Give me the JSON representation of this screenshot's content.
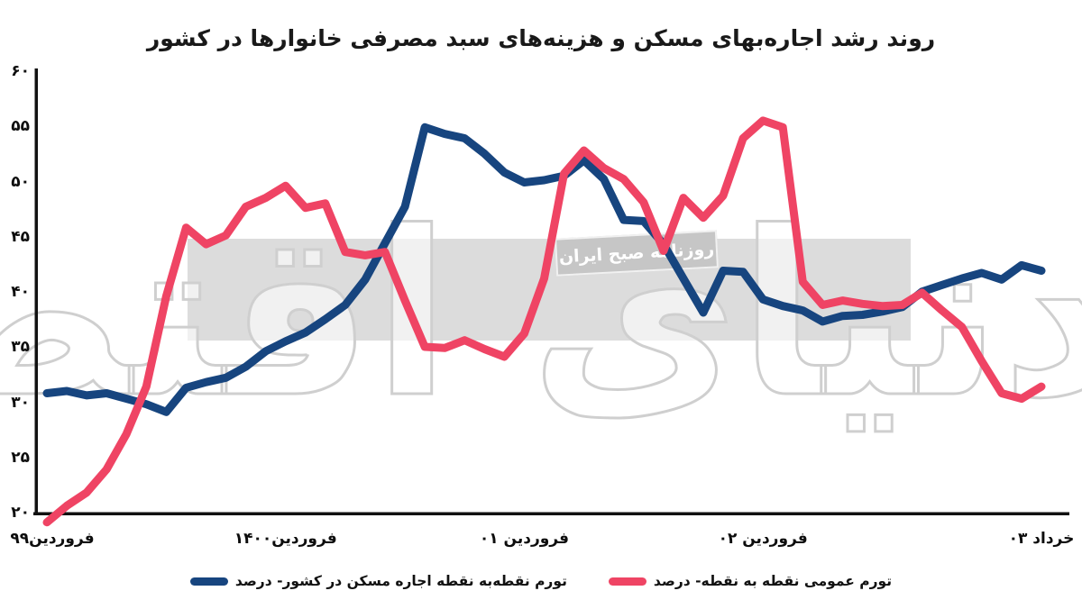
{
  "title": "روند رشد اجاره‌بهای مسکن و هزینه‌های سبد مصرفی خانوارها در کشور",
  "watermark": {
    "newspaper_name": "دنیای اقتصاد",
    "badge_text": "روزنامه صبح ایران",
    "band_color": "#dcdcdc",
    "badge_color": "#c6c6c6"
  },
  "colors": {
    "rent_line": "#17457f",
    "cpi_line": "#ef4464",
    "axis": "#111111"
  },
  "y_axis": {
    "ticks": [
      {
        "label": "۶۰",
        "value": 60
      },
      {
        "label": "۵۵",
        "value": 55
      },
      {
        "label": "۵۰",
        "value": 50
      },
      {
        "label": "۴۵",
        "value": 45
      },
      {
        "label": "۴۰",
        "value": 40
      },
      {
        "label": "۳۵",
        "value": 35
      },
      {
        "label": "۳۰",
        "value": 30
      },
      {
        "label": "۲۵",
        "value": 25
      },
      {
        "label": "۲۰",
        "value": 20
      }
    ]
  },
  "x_axis": {
    "labels": [
      {
        "label": "فروردین۹۹",
        "month": 0
      },
      {
        "label": "فروردین۱۴۰۰",
        "month": 12
      },
      {
        "label": "فروردین ۰۱",
        "month": 24
      },
      {
        "label": "فروردین ۰۲",
        "month": 36
      },
      {
        "label": "خرداد ۰۳",
        "month": 50
      }
    ]
  },
  "legend": {
    "items": [
      {
        "series": "rent",
        "label": "تورم نقطه‌به نقطه اجاره مسکن در کشور- درصد",
        "color": "#17457f"
      },
      {
        "series": "cpi",
        "label": "تورم عمومی نقطه به نقطه- درصد",
        "color": "#ef4464"
      }
    ]
  },
  "chart_data": {
    "type": "line",
    "title": "روند رشد اجاره‌بهای مسکن و هزینه‌های سبد مصرفی خانوارها در کشور",
    "x_unit": "month index, monthly data; 0 = Farvardin 1399, 12 = Farvardin 1400, 24 = Farvardin 1401, 36 = Farvardin 1402, 50 = Khordad 1403",
    "x_tick_months": [
      0,
      12,
      24,
      36,
      50
    ],
    "ylim": [
      20,
      60
    ],
    "y_ticks": [
      20,
      25,
      30,
      35,
      40,
      45,
      50,
      55,
      60
    ],
    "grid": false,
    "legend_position": "bottom",
    "series": [
      {
        "name": "تورم نقطه‌به نقطه اجاره مسکن در کشور- درصد",
        "color": "#17457f",
        "values": [
          30.9,
          31.1,
          30.7,
          30.9,
          30.4,
          29.9,
          29.2,
          31.4,
          31.9,
          32.3,
          33.3,
          34.7,
          35.6,
          36.4,
          37.6,
          38.9,
          41.2,
          44.5,
          47.8,
          55.0,
          54.4,
          54.0,
          52.6,
          50.9,
          50.0,
          50.2,
          50.6,
          52.0,
          50.3,
          46.6,
          46.5,
          44.4,
          41.3,
          38.2,
          42.0,
          41.9,
          39.4,
          38.8,
          38.4,
          37.4,
          37.9,
          38.0,
          38.3,
          38.7,
          40.1,
          40.7,
          41.3,
          41.8,
          41.2,
          42.5,
          42.0
        ]
      },
      {
        "name": "تورم عمومی نقطه به نقطه- درصد",
        "color": "#ef4464",
        "values": [
          19.2,
          20.7,
          21.9,
          24.0,
          27.2,
          31.5,
          39.7,
          45.9,
          44.4,
          45.2,
          47.8,
          48.6,
          49.7,
          47.7,
          48.1,
          43.7,
          43.4,
          43.7,
          39.3,
          35.1,
          35.0,
          35.7,
          34.9,
          34.2,
          36.3,
          41.3,
          50.8,
          52.9,
          51.3,
          50.3,
          48.2,
          43.8,
          48.6,
          46.8,
          48.8,
          54.0,
          55.6,
          55.0,
          41.0,
          38.9,
          39.3,
          39.0,
          38.8,
          38.9,
          40.0,
          38.4,
          36.9,
          33.8,
          30.9,
          30.4,
          31.5
        ]
      }
    ]
  }
}
